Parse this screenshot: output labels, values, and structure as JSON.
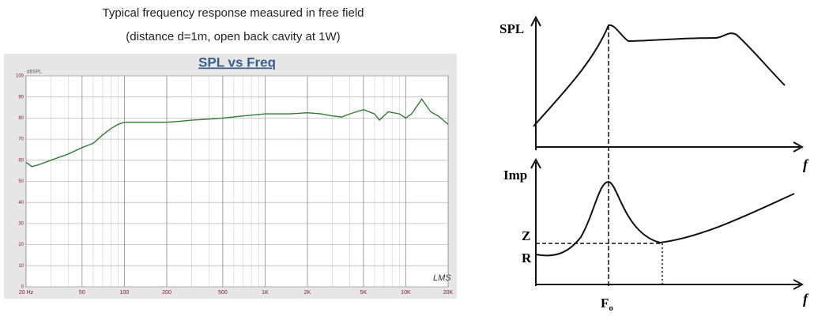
{
  "header": {
    "line1": "Typical frequency response measured in free field",
    "line2": "(distance  d=1m, open back cavity at 1W)"
  },
  "chart_data": {
    "type": "line",
    "title": "SPL vs Freq",
    "y_label": "dBSPL",
    "watermark": "LMS",
    "x": [
      20,
      22,
      25,
      30,
      40,
      50,
      60,
      70,
      80,
      90,
      100,
      150,
      200,
      250,
      300,
      400,
      500,
      700,
      1000,
      1500,
      2000,
      2500,
      3000,
      3500,
      4000,
      5000,
      6000,
      6500,
      7500,
      9000,
      10000,
      11000,
      13000,
      15000,
      17000,
      20000
    ],
    "series": [
      {
        "name": "SPL",
        "color": "#2e7d32",
        "values": [
          59,
          57,
          58,
          60,
          63,
          66,
          68,
          72,
          75,
          77,
          78,
          78,
          78,
          78.5,
          79,
          79.5,
          80,
          81,
          82,
          82,
          82.5,
          82,
          81,
          80.5,
          82,
          84,
          82,
          79,
          83,
          82,
          80,
          82,
          89,
          83,
          81,
          77
        ]
      }
    ],
    "xlim": [
      20,
      20000
    ],
    "ylim": [
      0,
      100
    ],
    "log_x": true,
    "grid": true,
    "xticks": [
      {
        "value": 20,
        "label": "20 Hz"
      },
      50,
      100,
      200,
      500,
      {
        "value": 1000,
        "label": "1K"
      },
      {
        "value": 2000,
        "label": "2K"
      },
      {
        "value": 5000,
        "label": "5K"
      },
      {
        "value": 10000,
        "label": "10K"
      },
      {
        "value": 20000,
        "label": "20K"
      }
    ],
    "yticks": [
      0,
      10,
      20,
      30,
      40,
      50,
      60,
      70,
      80,
      90,
      100
    ]
  },
  "diagram": {
    "spl_axis": "SPL",
    "imp_axis": "Imp",
    "f_top": "f",
    "f_bottom": "f",
    "z_label": "Z",
    "r_label": "R",
    "fo_label": "F",
    "fo_sub": "o"
  }
}
